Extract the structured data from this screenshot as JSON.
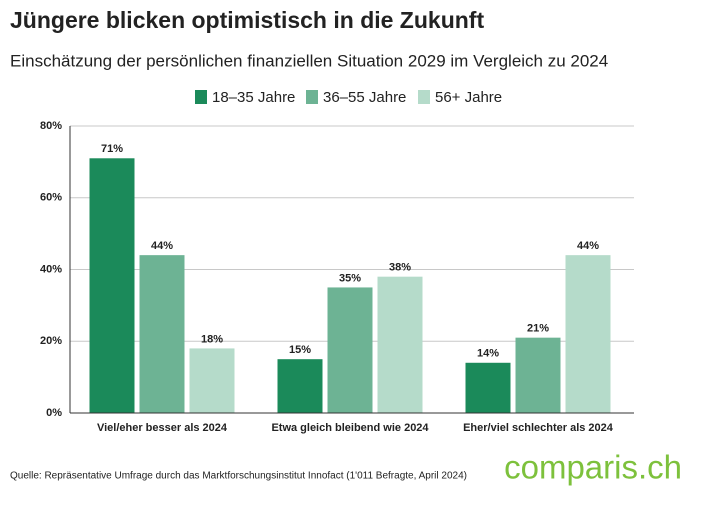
{
  "chart_data": {
    "type": "bar",
    "title": "Jüngere blicken optimistisch in die Zukunft",
    "subtitle": "Einschätzung der persönlichen finanziellen Situation 2029 im Vergleich zu 2024",
    "categories": [
      "Viel/eher besser als 2024",
      "Etwa gleich bleibend wie 2024",
      "Eher/viel schlechter als 2024"
    ],
    "series": [
      {
        "name": "18–35 Jahre",
        "color": "#1b8a5a",
        "values": [
          71,
          15,
          14
        ],
        "value_labels": [
          "71%",
          "15%",
          "14%"
        ]
      },
      {
        "name": "36–55 Jahre",
        "color": "#6db394",
        "values": [
          44,
          35,
          21
        ],
        "value_labels": [
          "44%",
          "35%",
          "21%"
        ]
      },
      {
        "name": "56+ Jahre",
        "color": "#b5dbca",
        "values": [
          18,
          38,
          44
        ],
        "value_labels": [
          "18%",
          "38%",
          "44%"
        ]
      }
    ],
    "ylim": [
      0,
      80
    ],
    "yticks": [
      {
        "value": 0,
        "label": "0%"
      },
      {
        "value": 20,
        "label": "20%"
      },
      {
        "value": 40,
        "label": "40%"
      },
      {
        "value": 60,
        "label": "60%"
      },
      {
        "value": 80,
        "label": "80%"
      }
    ],
    "grid": true,
    "source": "Quelle: Repräsentative Umfrage durch das Marktforschungsinstitut Innofact (1'011 Befragte, April 2024)",
    "logo": "comparis.ch"
  }
}
